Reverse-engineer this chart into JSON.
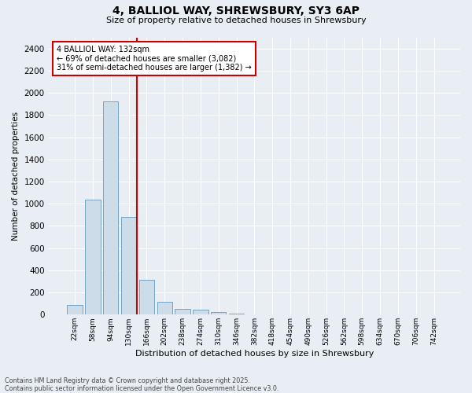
{
  "title_line1": "4, BALLIOL WAY, SHREWSBURY, SY3 6AP",
  "title_line2": "Size of property relative to detached houses in Shrewsbury",
  "xlabel": "Distribution of detached houses by size in Shrewsbury",
  "ylabel": "Number of detached properties",
  "categories": [
    "22sqm",
    "58sqm",
    "94sqm",
    "130sqm",
    "166sqm",
    "202sqm",
    "238sqm",
    "274sqm",
    "310sqm",
    "346sqm",
    "382sqm",
    "418sqm",
    "454sqm",
    "490sqm",
    "526sqm",
    "562sqm",
    "598sqm",
    "634sqm",
    "670sqm",
    "706sqm",
    "742sqm"
  ],
  "values": [
    85,
    1035,
    1925,
    880,
    315,
    115,
    55,
    42,
    20,
    10,
    5,
    0,
    0,
    0,
    0,
    0,
    0,
    0,
    0,
    0,
    0
  ],
  "bar_color": "#ccdce8",
  "bar_edge_color": "#6699bb",
  "annotation_line1": "4 BALLIOL WAY: 132sqm",
  "annotation_line2": "← 69% of detached houses are smaller (3,082)",
  "annotation_line3": "31% of semi-detached houses are larger (1,382) →",
  "vline_color": "#cc0000",
  "annotation_box_edge_color": "#cc0000",
  "ylim": [
    0,
    2500
  ],
  "yticks": [
    0,
    200,
    400,
    600,
    800,
    1000,
    1200,
    1400,
    1600,
    1800,
    2000,
    2200,
    2400
  ],
  "footer_line1": "Contains HM Land Registry data © Crown copyright and database right 2025.",
  "footer_line2": "Contains public sector information licensed under the Open Government Licence v3.0.",
  "background_color": "#e8eef4",
  "plot_bg_color": "#e8eef4",
  "vline_x_index": 3.45
}
